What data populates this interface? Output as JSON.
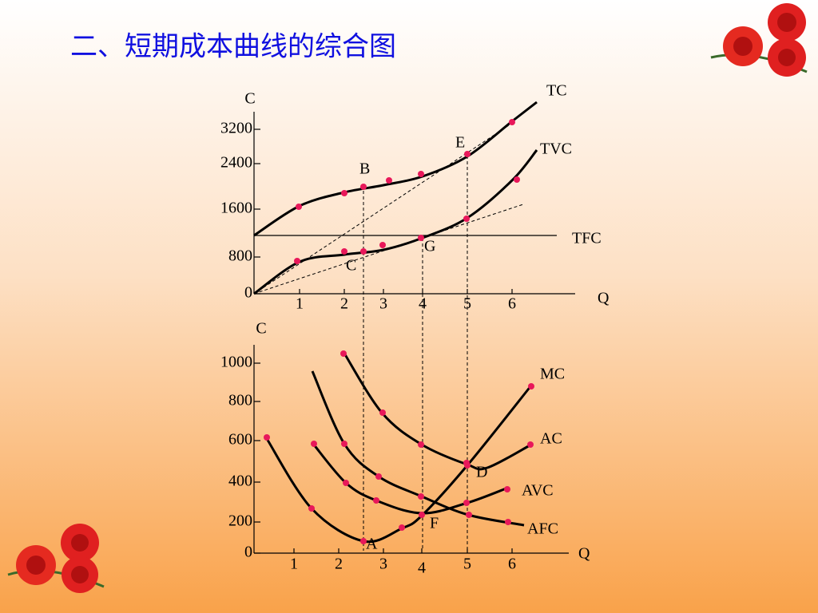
{
  "title": "二、短期成本曲线的综合图",
  "top_chart": {
    "y_axis_label": "C",
    "x_axis_label": "Q",
    "yticks": [
      "3200",
      "2400",
      "1600",
      "800",
      "0"
    ],
    "xticks": [
      "1",
      "2",
      "3",
      "4",
      "5",
      "6"
    ],
    "curve_labels": {
      "tc": "TC",
      "tvc": "TVC",
      "tfc": "TFC"
    },
    "point_labels": {
      "b": "B",
      "e": "E",
      "g": "G",
      "c": "C"
    }
  },
  "bottom_chart": {
    "y_axis_label": "C",
    "x_axis_label": "Q",
    "yticks": [
      "1000",
      "800",
      "600",
      "400",
      "200",
      "0"
    ],
    "xticks": [
      "1",
      "2",
      "3",
      "4",
      "5",
      "6"
    ],
    "curve_labels": {
      "mc": "MC",
      "ac": "AC",
      "avc": "AVC",
      "afc": "AFC"
    },
    "point_labels": {
      "a": "A",
      "f": "F",
      "d": "D"
    }
  }
}
